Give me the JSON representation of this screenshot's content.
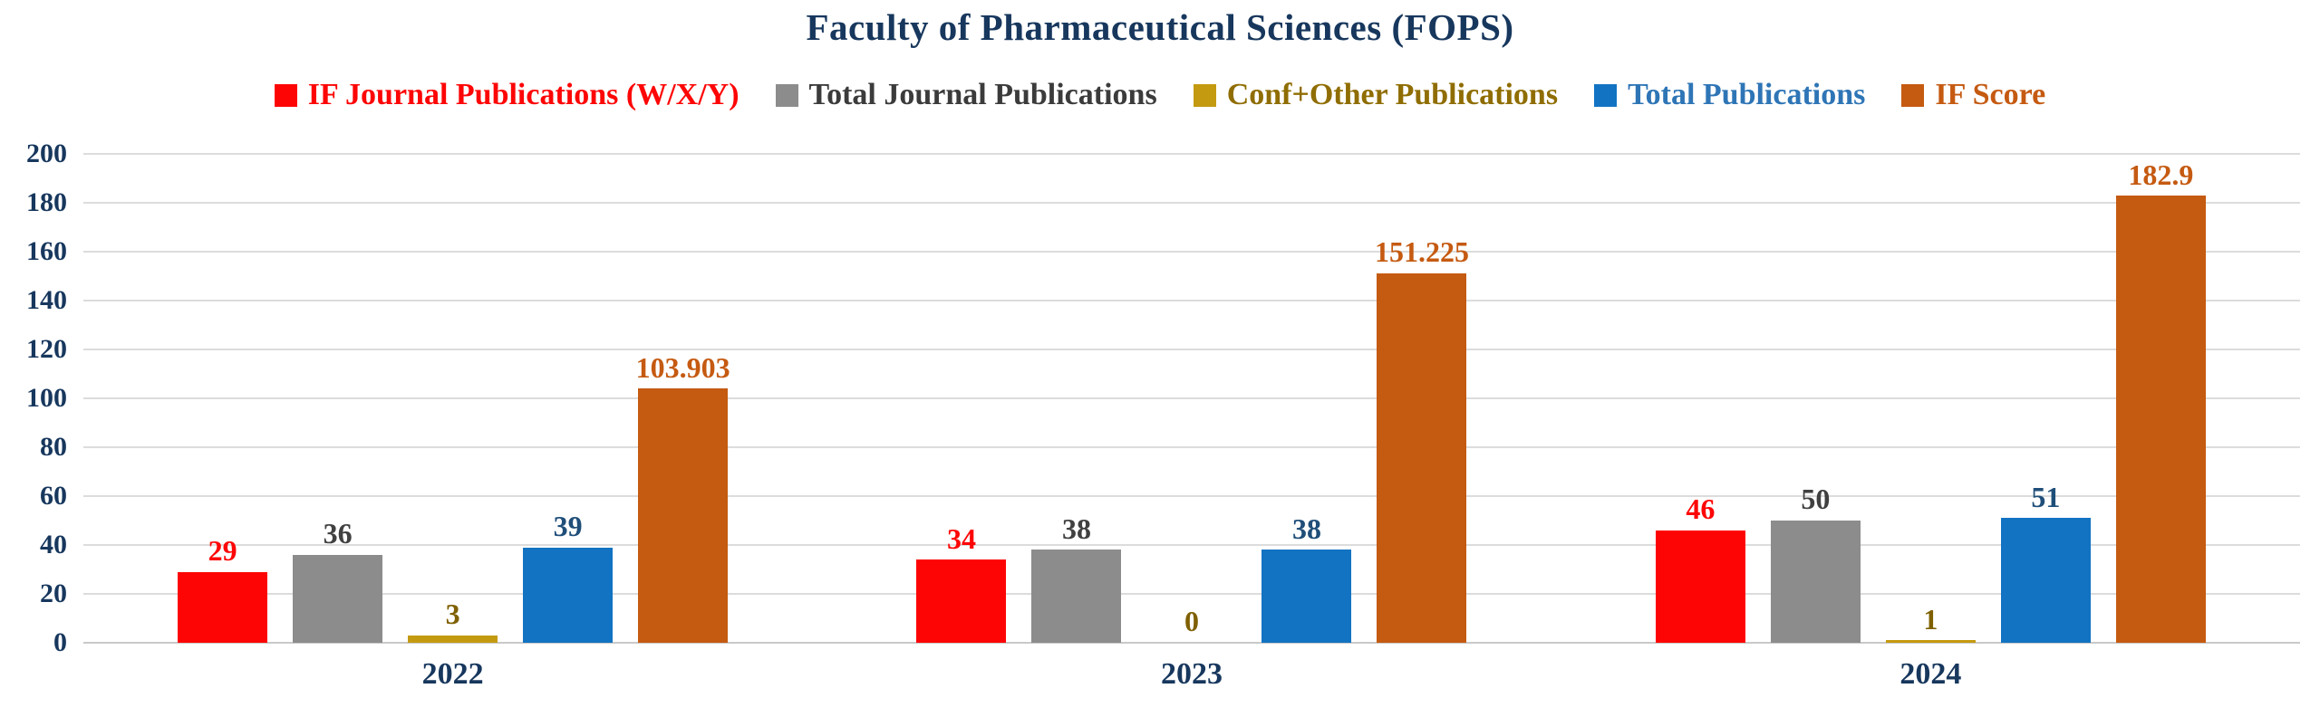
{
  "title": "Faculty of Pharmaceutical Sciences (FOPS)",
  "chart_data": {
    "type": "bar",
    "title": "Faculty of Pharmaceutical Sciences (FOPS)",
    "categories": [
      "2022",
      "2023",
      "2024"
    ],
    "series": [
      {
        "name": "IF Journal Publications (W/X/Y)",
        "bar_color": "#FE0505",
        "legend_text_color": "#FE0505",
        "label_color": "#FE0505",
        "values": [
          29,
          34,
          46
        ],
        "labels": [
          "29",
          "34",
          "46"
        ]
      },
      {
        "name": "Total Journal Publications",
        "bar_color": "#8C8C8C",
        "legend_text_color": "#3B3B3B",
        "label_color": "#404040",
        "values": [
          36,
          38,
          50
        ],
        "labels": [
          "36",
          "38",
          "50"
        ]
      },
      {
        "name": "Conf+Other Publications",
        "bar_color": "#C49A10",
        "legend_text_color": "#8F6D00",
        "label_color": "#7F6000",
        "values": [
          3,
          0,
          1
        ],
        "labels": [
          "3",
          "0",
          "1"
        ]
      },
      {
        "name": "Total Publications",
        "bar_color": "#1273C2",
        "legend_text_color": "#2E75B6",
        "label_color": "#1F4E79",
        "values": [
          39,
          38,
          51
        ],
        "labels": [
          "39",
          "38",
          "51"
        ]
      },
      {
        "name": "IF Score",
        "bar_color": "#C55A11",
        "legend_text_color": "#C55A11",
        "label_color": "#C55A11",
        "values": [
          103.903,
          151.225,
          182.9
        ],
        "labels": [
          "103.903",
          "151.225",
          "182.9"
        ]
      }
    ],
    "ylim": [
      0,
      200
    ],
    "ytick_step": 20,
    "yticks": [
      "200",
      "180",
      "160",
      "140",
      "120",
      "100",
      "80",
      "60",
      "40",
      "20",
      "0"
    ],
    "grid": true,
    "legend_position": "top",
    "xlabel": "",
    "ylabel": ""
  },
  "style_colors": {
    "title_text": "#17375D",
    "axis_text": "#17375D",
    "gridline": "#DCDCDC"
  }
}
